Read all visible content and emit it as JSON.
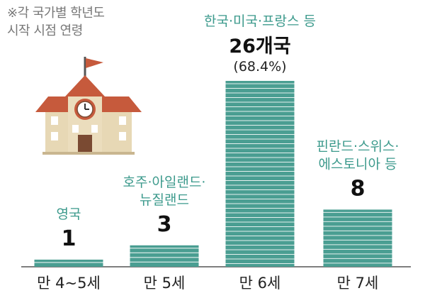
{
  "note": {
    "line1": "※각 국가별 학년도",
    "line2": "시작 시점 연령"
  },
  "colors": {
    "bar": "#4a9e92",
    "bar_stripe": "#ffffff",
    "label_teal": "#3c9a8c",
    "value_text": "#111111",
    "axis_text": "#222222",
    "baseline": "#555555"
  },
  "chart_data": {
    "type": "bar",
    "title": "",
    "xlabel": "",
    "ylabel": "",
    "ylim": [
      0,
      26
    ],
    "grid": false,
    "legend": "none",
    "categories": [
      "만 4~5세",
      "만 5세",
      "만 6세",
      "만 7세"
    ],
    "values": [
      1,
      3,
      26,
      8
    ],
    "value_labels": [
      "1",
      "3",
      "26개국",
      "8"
    ],
    "sub_labels": [
      "",
      "",
      "(68.4%)",
      ""
    ],
    "country_labels": [
      [
        "영국"
      ],
      [
        "호주·아일랜드·",
        "뉴질랜드"
      ],
      [
        "한국·미국·프랑스 등"
      ],
      [
        "핀란드·스위스·",
        "에스토니아 등"
      ]
    ]
  }
}
